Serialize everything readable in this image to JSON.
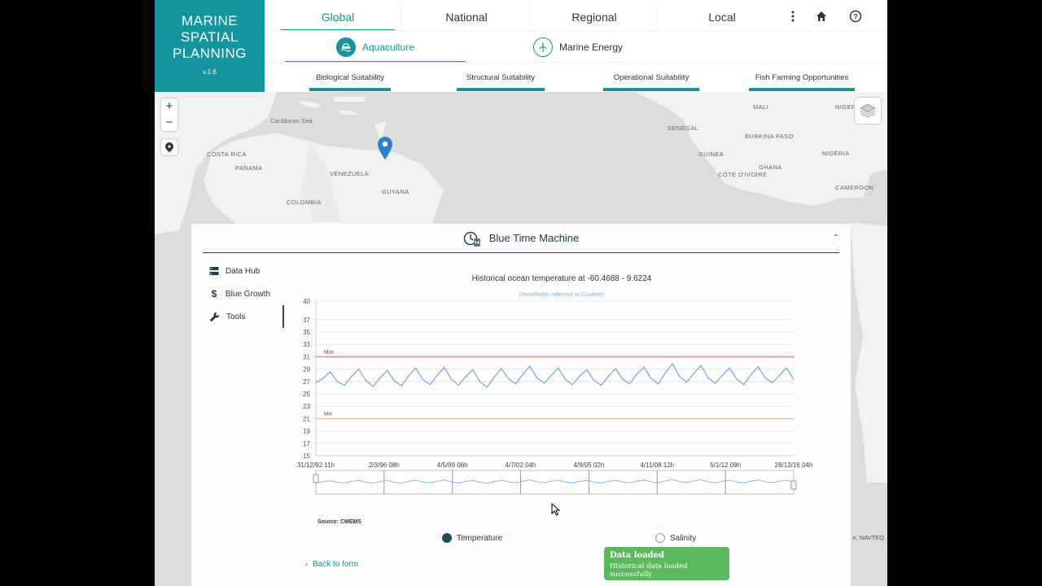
{
  "brand": {
    "title_line1": "MARINE",
    "title_line2": "SPATIAL",
    "title_line3": "PLANNING",
    "version": "v.1.6"
  },
  "scope_tabs": [
    {
      "label": "Global",
      "active": true
    },
    {
      "label": "National",
      "active": false
    },
    {
      "label": "Regional",
      "active": false
    },
    {
      "label": "Local",
      "active": false
    }
  ],
  "header_icons": [
    "more-vertical-icon",
    "home-icon",
    "help-icon"
  ],
  "sector_tabs": [
    {
      "label": "Aquaculture",
      "icon": "aquaculture-icon",
      "active": true
    },
    {
      "label": "Marine Energy",
      "icon": "wind-turbine-icon",
      "active": false
    }
  ],
  "sub_tabs": [
    {
      "label": "Biological Suitability"
    },
    {
      "label": "Structural Suitability"
    },
    {
      "label": "Operational Suitability"
    },
    {
      "label": "Fish Farming Opportunities"
    }
  ],
  "map": {
    "labels": [
      "Caribbean Sea",
      "COSTA RICA",
      "PANAMA",
      "VENEZUELA",
      "COLOMBIA",
      "GUYANA",
      "MALI",
      "NIGER",
      "SENEGAL",
      "BURKINA FASO",
      "GUINEA",
      "NIGERIA",
      "CÔTE D'IVOIRE",
      "GHANA",
      "CAMEROON"
    ],
    "attribution": "e, NAVTEQ"
  },
  "panel": {
    "title": "Blue Time Machine",
    "nav": [
      {
        "label": "Data Hub",
        "icon": "server-icon"
      },
      {
        "label": "Blue Growth",
        "icon": "dollar-icon"
      },
      {
        "label": "Tools",
        "icon": "wrench-icon",
        "active": true
      }
    ],
    "source": "Source: CMEMS",
    "back_label": "Back to form",
    "legend": [
      {
        "label": "Temperature",
        "selected": true
      },
      {
        "label": "Salinity",
        "selected": false
      }
    ]
  },
  "chart_data": {
    "type": "line",
    "title": "Historical ocean temperature at -60.4688 - 9.6224",
    "subtitle": "(thresholds referred to Custom)",
    "y_ticks": [
      15,
      17,
      19,
      21,
      23,
      25,
      27,
      29,
      31,
      33,
      35,
      37,
      40
    ],
    "ylim": [
      15,
      40
    ],
    "x_ticks": [
      "31/12/92 11h",
      "2/3/96 08h",
      "4/5/99 06h",
      "4/7/02 04h",
      "4/9/05 02h",
      "4/11/08 12h",
      "5/1/12 09h",
      "28/12/16 04h"
    ],
    "thresholds": [
      {
        "label": "Max",
        "value": 31,
        "color": "#f08a7a"
      },
      {
        "label": "Min",
        "value": 21,
        "color": "#f5c08a"
      }
    ],
    "series": [
      {
        "color": "#6fa8dc",
        "values": [
          26.8,
          27.5,
          28.6,
          27.0,
          26.4,
          27.8,
          29.0,
          27.2,
          26.2,
          27.6,
          28.8,
          27.1,
          26.3,
          27.9,
          29.2,
          27.3,
          26.5,
          28.0,
          29.3,
          27.4,
          26.4,
          27.8,
          28.9,
          27.0,
          26.1,
          27.7,
          29.1,
          27.5,
          26.6,
          28.1,
          29.5,
          27.6,
          26.7,
          28.0,
          29.2,
          27.3,
          26.5,
          27.9,
          28.9,
          27.2,
          26.4,
          27.8,
          29.1,
          27.4,
          26.6,
          28.2,
          29.3,
          27.5,
          26.6,
          28.4,
          29.9,
          27.8,
          26.9,
          28.3,
          29.6,
          27.6,
          26.7,
          28.0,
          29.2,
          27.4,
          26.5,
          28.1,
          29.4,
          27.6,
          26.8,
          28.0,
          29.2,
          27.3
        ]
      }
    ]
  },
  "toast": {
    "title": "Data loaded",
    "message": "Historical data loaded successfully"
  }
}
